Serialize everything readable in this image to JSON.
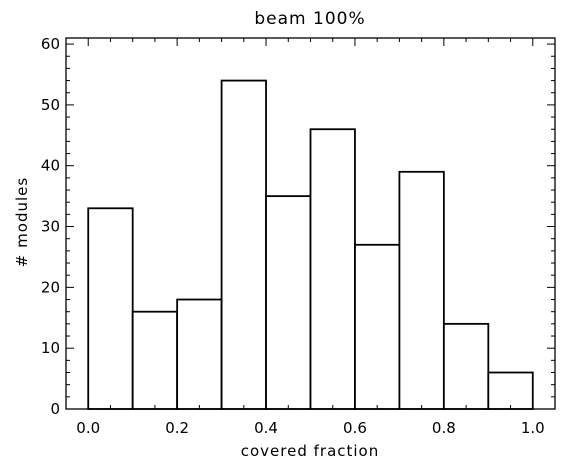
{
  "chart_data": {
    "type": "bar",
    "title": "beam 100%",
    "xlabel": "covered fraction",
    "ylabel": "# modules",
    "bin_edges": [
      0.0,
      0.1,
      0.2,
      0.3,
      0.4,
      0.5,
      0.6,
      0.7,
      0.8,
      0.9,
      1.0
    ],
    "values": [
      33,
      16,
      18,
      54,
      35,
      46,
      27,
      39,
      14,
      6
    ],
    "xlim": [
      -0.05,
      1.05
    ],
    "ylim": [
      0,
      61
    ],
    "xticks": [
      0.0,
      0.2,
      0.4,
      0.6,
      0.8,
      1.0
    ],
    "xtick_labels": [
      "0.0",
      "0.2",
      "0.4",
      "0.6",
      "0.8",
      "1.0"
    ],
    "yticks": [
      0,
      10,
      20,
      30,
      40,
      50,
      60
    ],
    "ytick_labels": [
      "0",
      "10",
      "20",
      "30",
      "40",
      "50",
      "60"
    ],
    "grid": false,
    "style": "histogram-outline",
    "colors": {
      "line": "#000000",
      "background": "#ffffff"
    }
  }
}
